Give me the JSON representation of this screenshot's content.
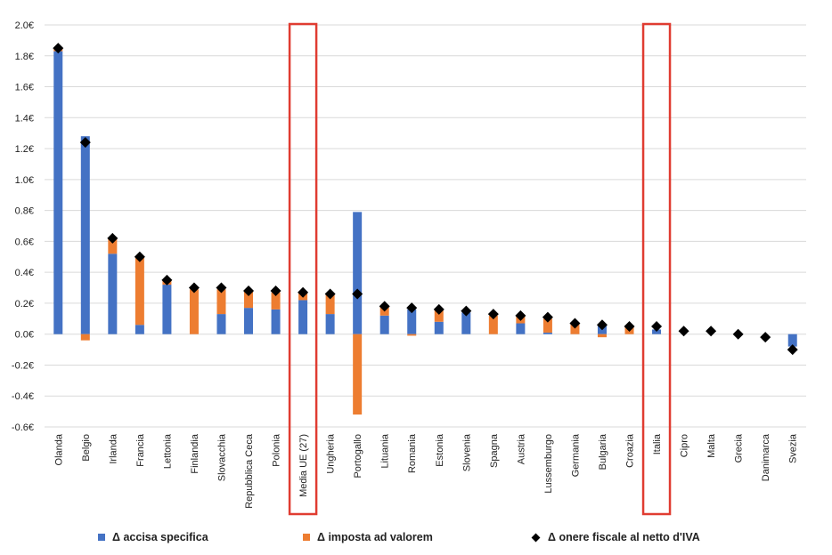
{
  "chart_data": {
    "type": "bar",
    "categories": [
      "Olanda",
      "Belgio",
      "Irlanda",
      "Francia",
      "Lettonia",
      "Finlandia",
      "Slovacchia",
      "Repubblica Ceca",
      "Polonia",
      "Media UE (27)",
      "Ungheria",
      "Portogallo",
      "Lituania",
      "Romania",
      "Estonia",
      "Slovenia",
      "Spagna",
      "Austria",
      "Lussemburgo",
      "Germania",
      "Bulgaria",
      "Croazia",
      "Italia",
      "Cipro",
      "Malta",
      "Grecia",
      "Danimarca",
      "Svezia"
    ],
    "series": [
      {
        "name": "Δ accisa specifica",
        "kind": "bar",
        "color": "#4472C4",
        "values": [
          1.83,
          1.28,
          0.52,
          0.06,
          0.32,
          0.0,
          0.13,
          0.17,
          0.16,
          0.22,
          0.13,
          0.79,
          0.12,
          0.16,
          0.08,
          0.14,
          0.0,
          0.07,
          0.01,
          0.0,
          0.06,
          0.0,
          0.03,
          0.0,
          0.0,
          0.0,
          0.0,
          -0.08
        ]
      },
      {
        "name": "Δ imposta ad valorem",
        "kind": "bar",
        "color": "#ED7D31",
        "values": [
          0.02,
          -0.04,
          0.1,
          0.44,
          0.03,
          0.29,
          0.16,
          0.11,
          0.11,
          0.05,
          0.13,
          -0.52,
          0.06,
          -0.01,
          0.08,
          0.0,
          0.12,
          0.05,
          0.09,
          0.07,
          -0.02,
          0.05,
          0.0,
          0.0,
          0.0,
          0.0,
          0.0,
          0.0
        ]
      },
      {
        "name": "Δ onere fiscale al netto d'IVA",
        "kind": "marker",
        "color": "#000000",
        "values": [
          1.85,
          1.24,
          0.62,
          0.5,
          0.35,
          0.3,
          0.3,
          0.28,
          0.28,
          0.27,
          0.26,
          0.26,
          0.18,
          0.17,
          0.16,
          0.15,
          0.13,
          0.12,
          0.11,
          0.07,
          0.06,
          0.05,
          0.05,
          0.02,
          0.02,
          0.0,
          -0.02,
          -0.1
        ]
      }
    ],
    "yticks": [
      "2.0€",
      "1.8€",
      "1.6€",
      "1.4€",
      "1.2€",
      "1.0€",
      "0.8€",
      "0.6€",
      "0.4€",
      "0.2€",
      "0.0€",
      "-0.2€",
      "-0.4€",
      "-0.6€"
    ],
    "ylim": [
      -0.6,
      2.0
    ],
    "grid": true,
    "legend_position": "bottom",
    "highlighted_categories": [
      "Media UE (27)",
      "Italia"
    ],
    "highlight_color": "#E03C31"
  },
  "legend": {
    "bar1": "Δ accisa specifica",
    "bar2": "Δ imposta ad valorem",
    "marker": "Δ onere fiscale al netto d'IVA"
  }
}
